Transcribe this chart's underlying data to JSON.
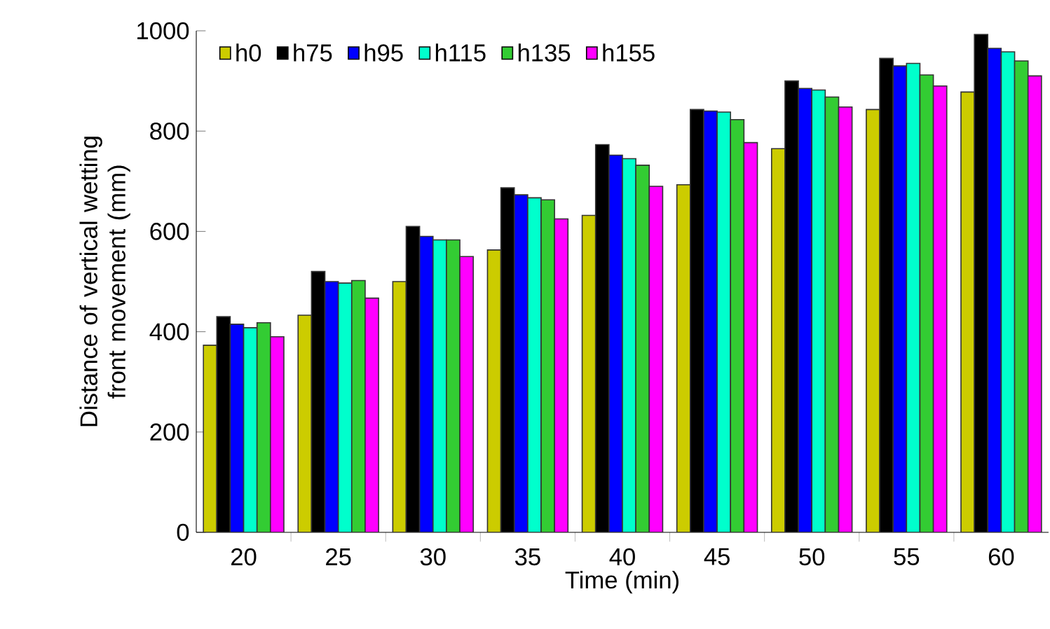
{
  "chart_data": {
    "type": "bar",
    "xlabel": "Time (min)",
    "ylabel": "Distance of vertical wetting front movement (mm)",
    "categories": [
      "20",
      "25",
      "30",
      "35",
      "40",
      "45",
      "50",
      "55",
      "60"
    ],
    "series": [
      {
        "name": "h0",
        "color": "#cccc00",
        "values": [
          373,
          433,
          500,
          563,
          632,
          693,
          765,
          843,
          878
        ]
      },
      {
        "name": "h75",
        "color": "#000000",
        "values": [
          430,
          520,
          610,
          687,
          773,
          843,
          900,
          945,
          993
        ]
      },
      {
        "name": "h95",
        "color": "#0000ff",
        "values": [
          415,
          500,
          590,
          673,
          752,
          840,
          885,
          930,
          965
        ]
      },
      {
        "name": "h115",
        "color": "#00ffcc",
        "values": [
          408,
          497,
          583,
          667,
          745,
          838,
          882,
          935,
          958
        ]
      },
      {
        "name": "h135",
        "color": "#33cc33",
        "values": [
          418,
          502,
          583,
          663,
          732,
          823,
          868,
          912,
          940
        ]
      },
      {
        "name": "h155",
        "color": "#ff00ff",
        "values": [
          390,
          467,
          550,
          625,
          690,
          777,
          848,
          890,
          910
        ]
      }
    ],
    "ylim": [
      0,
      1000
    ],
    "yticks": [
      0,
      200,
      400,
      600,
      800,
      1000
    ],
    "grid": false,
    "legend": "top left"
  }
}
